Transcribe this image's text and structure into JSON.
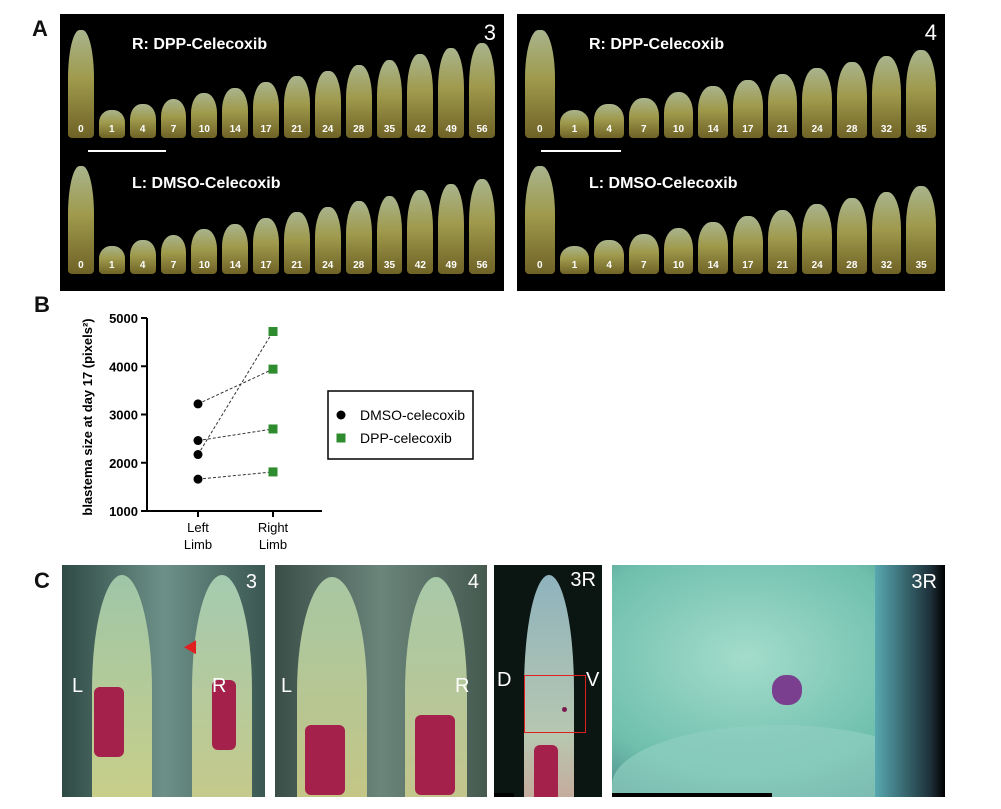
{
  "panel_labels": {
    "a": "A",
    "b": "B",
    "c": "C"
  },
  "panel_a": [
    {
      "number": "3",
      "top_title": "R: DPP-Celecoxib",
      "bottom_title": "L: DMSO-Celecoxib",
      "days": [
        "0",
        "1",
        "4",
        "7",
        "10",
        "14",
        "17",
        "21",
        "24",
        "28",
        "35",
        "42",
        "49",
        "56"
      ]
    },
    {
      "number": "4",
      "top_title": "R: DPP-Celecoxib",
      "bottom_title": "L: DMSO-Celecoxib",
      "days": [
        "0",
        "1",
        "4",
        "7",
        "10",
        "14",
        "17",
        "21",
        "24",
        "28",
        "32",
        "35"
      ]
    }
  ],
  "chart_data": {
    "type": "scatter",
    "ylabel": "blastema size at day 17 (pixels²)",
    "categories": [
      "Left\nLimb",
      "Right\nLimb"
    ],
    "category_lines": [
      [
        "Left",
        "Limb"
      ],
      [
        "Right",
        "Limb"
      ]
    ],
    "ylim": [
      1000,
      5000
    ],
    "yticks": [
      "1000",
      "2000",
      "3000",
      "4000",
      "5000"
    ],
    "legend_position": "right",
    "series": [
      {
        "name": "DMSO-celecoxib",
        "x": "Left Limb",
        "values": [
          3220,
          2460,
          2170,
          1660
        ],
        "color": "#000000",
        "marker": "circle"
      },
      {
        "name": "DPP-celecoxib",
        "x": "Right Limb",
        "values": [
          3940,
          2700,
          4720,
          1810
        ],
        "color": "#2e8b2e",
        "marker": "square"
      }
    ],
    "pairs": "dashed lines connect each left value to right value of same animal"
  },
  "panel_c": {
    "img1": {
      "number": "3",
      "left": "L",
      "right": "R"
    },
    "img2": {
      "number": "4",
      "left": "L",
      "right": "R"
    },
    "img3": {
      "number": "3R",
      "left": "D",
      "right": "V"
    },
    "img4": {
      "number": "3R"
    },
    "arrow_color": "#e02020"
  }
}
